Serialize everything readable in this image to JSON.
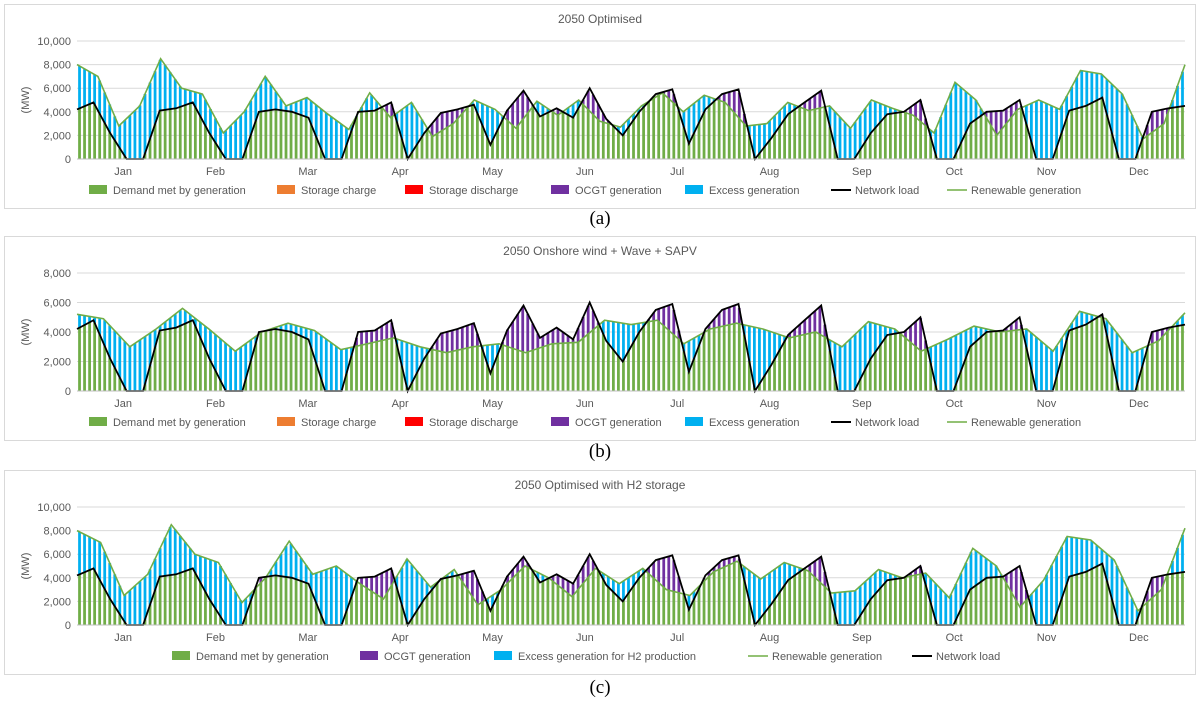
{
  "chart_data": [
    {
      "type": "bar",
      "title": "2050 Optimised",
      "ylabel": "(MW)",
      "ylim": [
        0,
        10000
      ],
      "y_ticks": [
        "0",
        "2,000",
        "4,000",
        "6,000",
        "8,000",
        "10,000"
      ],
      "months": [
        "Jan",
        "Feb",
        "Mar",
        "Apr",
        "May",
        "Jun",
        "Jul",
        "Aug",
        "Sep",
        "Oct",
        "Nov",
        "Dec"
      ],
      "legend": [
        "Demand met by generation",
        "Storage charge",
        "Storage discharge",
        "OCGT generation",
        "Excess generation",
        "Network load",
        "Renewable generation"
      ],
      "network_load": [
        4200,
        4800,
        2200,
        0,
        0,
        4100,
        4300,
        4800,
        2200,
        0,
        0,
        4000,
        4200,
        4000,
        3500,
        0,
        0,
        4000,
        4100,
        4800,
        0,
        2200,
        3900,
        4200,
        4600,
        1200,
        4100,
        5800,
        3600,
        4300,
        3500,
        6000,
        3400,
        2000,
        4000,
        5500,
        5900,
        1300,
        4200,
        5500,
        5900,
        0,
        1800,
        3800,
        4800,
        5800,
        0,
        0,
        2200,
        3800,
        4000,
        5000,
        0,
        0,
        3000,
        4000,
        4100,
        5000,
        0,
        0,
        4100,
        4500,
        5200,
        0,
        0,
        4000,
        4300,
        4500
      ],
      "renewable_generation": [
        8000,
        7000,
        2800,
        4500,
        8500,
        6000,
        5500,
        2200,
        4000,
        7000,
        4500,
        5200,
        3800,
        2500,
        5600,
        3500,
        4800,
        1900,
        3000,
        5000,
        4200,
        2600,
        4900,
        3700,
        5000,
        3200,
        2700,
        4500,
        5600,
        4000,
        5400,
        4800,
        2800,
        3000,
        4800,
        4100,
        4500,
        2600,
        5000,
        4300,
        3700,
        2200,
        6500,
        5000,
        2000,
        4200,
        5000,
        4200,
        7500,
        7200,
        5500,
        1700,
        3000,
        8000
      ],
      "renewable_ymax": 10000
    },
    {
      "type": "bar",
      "title": "2050 Onshore wind + Wave + SAPV",
      "ylabel": "(MW)",
      "ylim": [
        0,
        8000
      ],
      "y_ticks": [
        "0",
        "2,000",
        "4,000",
        "6,000",
        "8,000"
      ],
      "months": [
        "Jan",
        "Feb",
        "Mar",
        "Apr",
        "May",
        "Jun",
        "Jul",
        "Aug",
        "Sep",
        "Oct",
        "Nov",
        "Dec"
      ],
      "legend": [
        "Demand met by generation",
        "Storage charge",
        "Storage discharge",
        "OCGT generation",
        "Excess generation",
        "Network load",
        "Renewable generation"
      ],
      "network_load": [
        4200,
        4800,
        2200,
        0,
        0,
        4100,
        4300,
        4800,
        2200,
        0,
        0,
        4000,
        4200,
        4000,
        3500,
        0,
        0,
        4000,
        4100,
        4800,
        0,
        2200,
        3900,
        4200,
        4600,
        1200,
        4100,
        5800,
        3600,
        4300,
        3500,
        6000,
        3400,
        2000,
        4000,
        5500,
        5900,
        1300,
        4200,
        5500,
        5900,
        0,
        1800,
        3800,
        4800,
        5800,
        0,
        0,
        2200,
        3800,
        4000,
        5000,
        0,
        0,
        3000,
        4000,
        4100,
        5000,
        0,
        0,
        4100,
        4500,
        5200,
        0,
        0,
        4000,
        4300,
        4500
      ],
      "renewable_generation": [
        5200,
        4900,
        3000,
        4200,
        5600,
        4200,
        2700,
        4000,
        4600,
        4100,
        2800,
        3200,
        3600,
        3000,
        2600,
        3000,
        3200,
        2600,
        3200,
        3300,
        4800,
        4500,
        4800,
        3200,
        4200,
        4600,
        4200,
        3600,
        4000,
        3000,
        4700,
        4200,
        2700,
        3500,
        4400,
        4000,
        4200,
        2700,
        5400,
        4900,
        2600,
        3400,
        5300
      ],
      "renewable_ymax": 8000
    },
    {
      "type": "bar",
      "title": "2050 Optimised with H2 storage",
      "ylabel": "(MW)",
      "ylim": [
        0,
        10000
      ],
      "y_ticks": [
        "0",
        "2,000",
        "4,000",
        "6,000",
        "8,000",
        "10,000"
      ],
      "months": [
        "Jan",
        "Feb",
        "Mar",
        "Apr",
        "May",
        "Jun",
        "Jul",
        "Aug",
        "Sep",
        "Oct",
        "Nov",
        "Dec"
      ],
      "legend": [
        "Demand met by generation",
        "OCGT generation",
        "Excess generation for H2 production",
        "Renewable generation",
        "Network load"
      ],
      "network_load": [
        4200,
        4800,
        2200,
        0,
        0,
        4100,
        4300,
        4800,
        2200,
        0,
        0,
        4000,
        4200,
        4000,
        3500,
        0,
        0,
        4000,
        4100,
        4800,
        0,
        2200,
        3900,
        4200,
        4600,
        1200,
        4100,
        5800,
        3600,
        4300,
        3500,
        6000,
        3400,
        2000,
        4000,
        5500,
        5900,
        1300,
        4200,
        5500,
        5900,
        0,
        1800,
        3800,
        4800,
        5800,
        0,
        0,
        2200,
        3800,
        4000,
        5000,
        0,
        0,
        3000,
        4000,
        4100,
        5000,
        0,
        0,
        4100,
        4500,
        5200,
        0,
        0,
        4000,
        4300,
        4500
      ],
      "renewable_generation": [
        8000,
        7000,
        2500,
        4300,
        8500,
        6000,
        5300,
        1900,
        4000,
        7100,
        4300,
        5000,
        3500,
        2200,
        5600,
        3200,
        4700,
        1700,
        3000,
        5000,
        4000,
        2400,
        4800,
        3500,
        4800,
        3000,
        2500,
        4500,
        5400,
        3900,
        5300,
        4600,
        2700,
        2900,
        4700,
        4000,
        4400,
        2300,
        6500,
        5000,
        1500,
        3800,
        7500,
        7200,
        5500,
        1200,
        3000,
        8200
      ],
      "renewable_ymax": 10000
    }
  ],
  "sublabels": [
    "(a)",
    "(b)",
    "(c)"
  ],
  "colors": {
    "demand": "#70ad47",
    "storage_charge": "#ed7d31",
    "storage_discharge": "#ff0000",
    "ocgt": "#7030a0",
    "excess": "#00b0f0",
    "network": "#000000",
    "renewable": "#70ad47",
    "grid": "#d9d9d9",
    "text": "#595959"
  }
}
